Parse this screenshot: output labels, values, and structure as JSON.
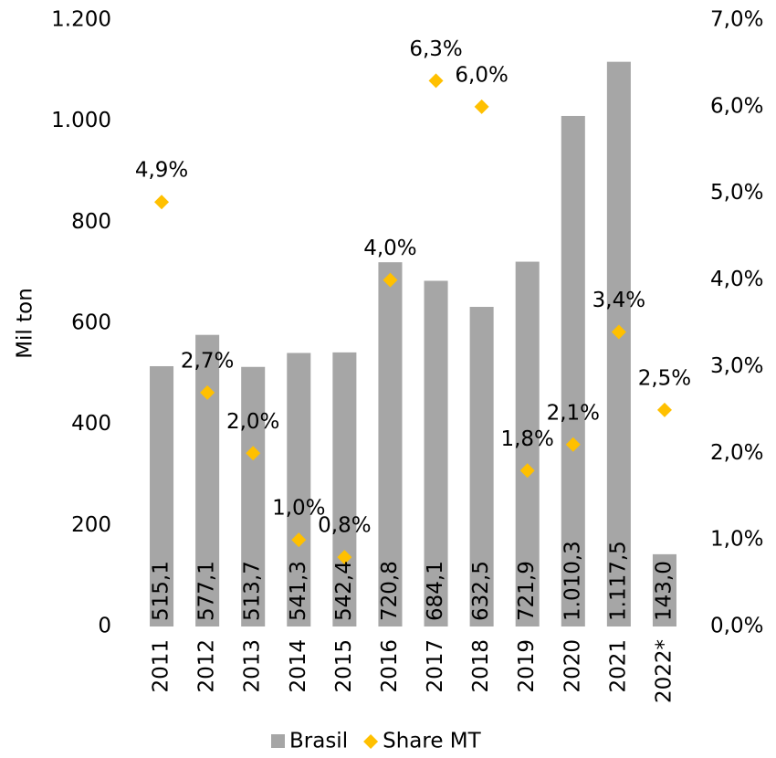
{
  "chart_data": {
    "type": "combo",
    "y_label": "Mil ton",
    "categories": [
      "2011",
      "2012",
      "2013",
      "2014",
      "2015",
      "2016",
      "2017",
      "2018",
      "2019",
      "2020",
      "2021",
      "2022*"
    ],
    "series": [
      {
        "name": "Brasil",
        "type": "bar",
        "color": "#a6a6a6",
        "values": [
          515.1,
          577.1,
          513.7,
          541.3,
          542.4,
          720.8,
          684.1,
          632.5,
          721.9,
          1010.3,
          1117.5,
          143.0
        ],
        "value_labels": [
          "515,1",
          "577,1",
          "513,7",
          "541,3",
          "542,4",
          "720,8",
          "684,1",
          "632,5",
          "721,9",
          "1.010,3",
          "1.117,5",
          "143,0"
        ]
      },
      {
        "name": "Share MT",
        "type": "scatter",
        "axis": "y2",
        "color": "#ffc000",
        "values": [
          4.9,
          2.7,
          2.0,
          1.0,
          0.8,
          4.0,
          6.3,
          6.0,
          1.8,
          2.1,
          3.4,
          2.5
        ],
        "value_labels": [
          "4,9%",
          "2,7%",
          "2,0%",
          "1,0%",
          "0,8%",
          "4,0%",
          "6,3%",
          "6,0%",
          "1,8%",
          "2,1%",
          "3,4%",
          "2,5%"
        ]
      }
    ],
    "ylim": [
      0,
      1200
    ],
    "yticks": [
      0,
      200,
      400,
      600,
      800,
      {
        "value": 1000,
        "label": "1.000"
      },
      {
        "value": 1200,
        "label": "1.200"
      }
    ],
    "y2lim": [
      0,
      7
    ],
    "y2ticks": [
      {
        "value": 0,
        "label": "0,0%"
      },
      {
        "value": 1,
        "label": "1,0%"
      },
      {
        "value": 2,
        "label": "2,0%"
      },
      {
        "value": 3,
        "label": "3,0%"
      },
      {
        "value": 4,
        "label": "4,0%"
      },
      {
        "value": 5,
        "label": "5,0%"
      },
      {
        "value": 6,
        "label": "6,0%"
      },
      {
        "value": 7,
        "label": "7,0%"
      }
    ],
    "grid": false,
    "legend": "bottom"
  }
}
